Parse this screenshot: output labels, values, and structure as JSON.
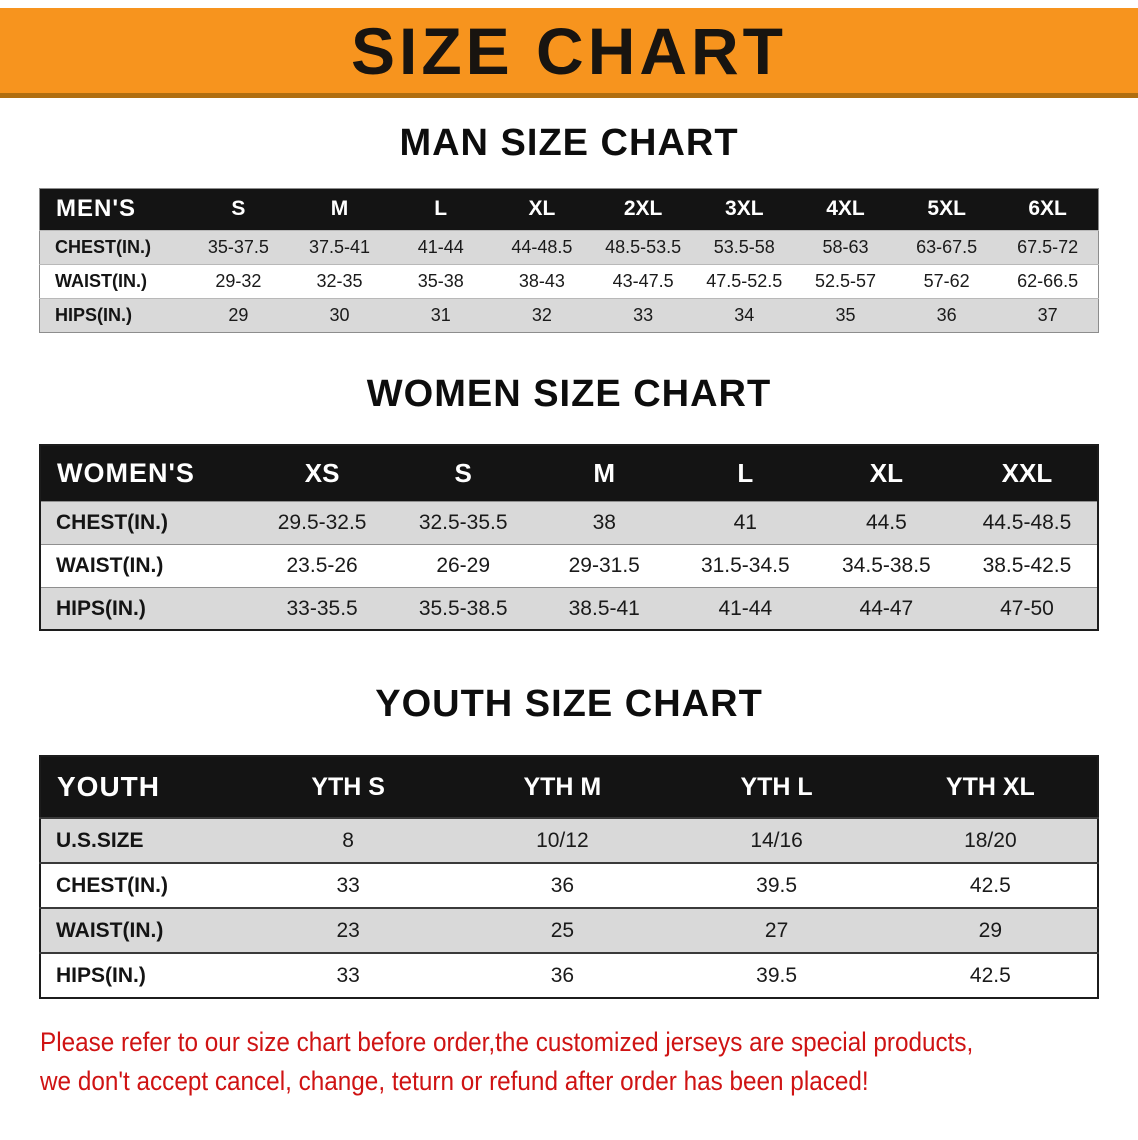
{
  "banner": {
    "title": "SIZE CHART",
    "bg_color": "#f7941e",
    "border_color": "#b06e10"
  },
  "sections": [
    {
      "heading": "MAN SIZE CHART",
      "table": {
        "corner": "MEN'S",
        "columns": [
          "S",
          "M",
          "L",
          "XL",
          "2XL",
          "3XL",
          "4XL",
          "5XL",
          "6XL"
        ],
        "rows": [
          {
            "label": "CHEST(IN.)",
            "values": [
              "35-37.5",
              "37.5-41",
              "41-44",
              "44-48.5",
              "48.5-53.5",
              "53.5-58",
              "58-63",
              "63-67.5",
              "67.5-72"
            ]
          },
          {
            "label": "WAIST(IN.)",
            "values": [
              "29-32",
              "32-35",
              "35-38",
              "38-43",
              "43-47.5",
              "47.5-52.5",
              "52.5-57",
              "57-62",
              "62-66.5"
            ]
          },
          {
            "label": "HIPS(IN.)",
            "values": [
              "29",
              "30",
              "31",
              "32",
              "33",
              "34",
              "35",
              "36",
              "37"
            ]
          }
        ]
      }
    },
    {
      "heading": "WOMEN SIZE CHART",
      "table": {
        "corner": "WOMEN'S",
        "columns": [
          "XS",
          "S",
          "M",
          "L",
          "XL",
          "XXL"
        ],
        "rows": [
          {
            "label": "CHEST(IN.)",
            "values": [
              "29.5-32.5",
              "32.5-35.5",
              "38",
              "41",
              "44.5",
              "44.5-48.5"
            ]
          },
          {
            "label": "WAIST(IN.)",
            "values": [
              "23.5-26",
              "26-29",
              "29-31.5",
              "31.5-34.5",
              "34.5-38.5",
              "38.5-42.5"
            ]
          },
          {
            "label": "HIPS(IN.)",
            "values": [
              "33-35.5",
              "35.5-38.5",
              "38.5-41",
              "41-44",
              "44-47",
              "47-50"
            ]
          }
        ]
      }
    },
    {
      "heading": "YOUTH SIZE CHART",
      "table": {
        "corner": "YOUTH",
        "columns": [
          "YTH S",
          "YTH M",
          "YTH L",
          "YTH XL"
        ],
        "rows": [
          {
            "label": "U.S.SIZE",
            "values": [
              "8",
              "10/12",
              "14/16",
              "18/20"
            ]
          },
          {
            "label": "CHEST(IN.)",
            "values": [
              "33",
              "36",
              "39.5",
              "42.5"
            ]
          },
          {
            "label": "WAIST(IN.)",
            "values": [
              "23",
              "25",
              "27",
              "29"
            ]
          },
          {
            "label": "HIPS(IN.)",
            "values": [
              "33",
              "36",
              "39.5",
              "42.5"
            ]
          }
        ]
      }
    }
  ],
  "footer": {
    "line1": "Please refer to our size chart before order,the customized jerseys are special products,",
    "line2": "we don't accept cancel, change, teturn or refund after order has been placed!"
  },
  "colors": {
    "header_row_bg": "#141414",
    "stripe_gray": "#d9d9d9",
    "note_red": "#cf1313"
  }
}
